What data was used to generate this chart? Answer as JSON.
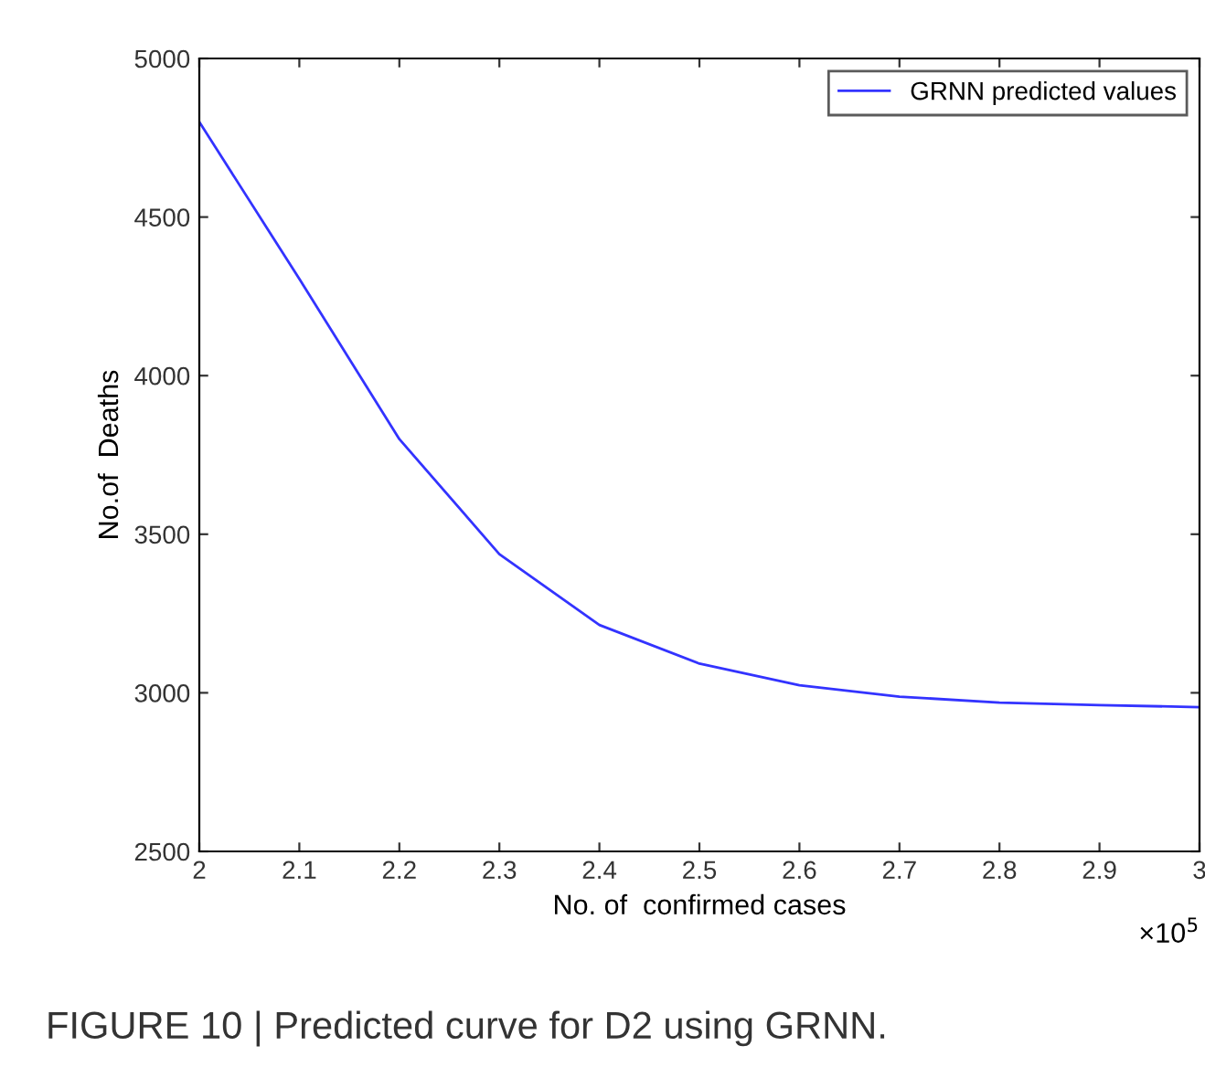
{
  "chart_data": {
    "type": "line",
    "xlabel": "No. of  confirmed cases",
    "ylabel": "No.of  Deaths",
    "x": [
      2,
      2.1,
      2.2,
      2.3,
      2.4,
      2.5,
      2.6,
      2.7,
      2.8,
      2.9,
      3
    ],
    "series": [
      {
        "name": "GRNN predicted values",
        "color": "#3333ff",
        "values": [
          4800,
          4305,
          3800,
          3437,
          3214,
          3092,
          3024,
          2988,
          2969,
          2961,
          2955
        ]
      }
    ],
    "xlim": [
      2,
      3
    ],
    "xticks": [
      2,
      2.1,
      2.2,
      2.3,
      2.4,
      2.5,
      2.6,
      2.7,
      2.8,
      2.9,
      3
    ],
    "ylim": [
      2500,
      5000
    ],
    "yticks": [
      2500,
      3000,
      3500,
      4000,
      4500,
      5000
    ],
    "legend": "top right",
    "grid": false,
    "marker": "none",
    "line_style": "solid",
    "annotations": [
      "×10$^{5}$",
      "FIGURE 10 | Predicted curve for D2 using GRNN."
    ]
  }
}
